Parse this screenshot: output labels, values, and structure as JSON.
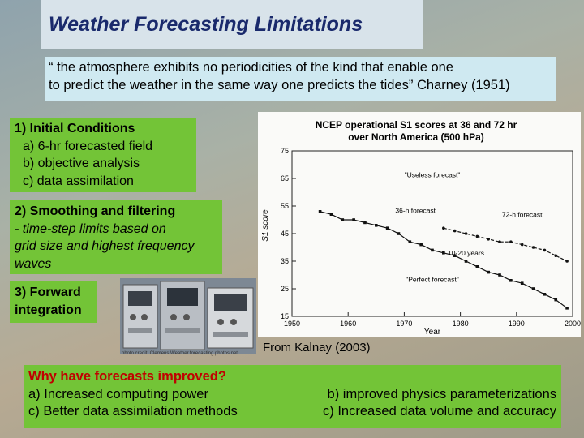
{
  "title": "Weather Forecasting Limitations",
  "quote": {
    "line1": "“ the atmosphere exhibits no periodicities of the kind that enable one",
    "line2": "to predict the weather in the same way one predicts the tides” Charney (1951)"
  },
  "section1": {
    "heading": "1)  Initial Conditions",
    "items": [
      "a) 6-hr forecasted field",
      "b) objective analysis",
      "c) data assimilation"
    ]
  },
  "section2": {
    "heading": "2) Smoothing and filtering",
    "detail_line1": " - time-step limits based on",
    "detail_line2": "grid size and highest frequency",
    "detail_line3": "waves"
  },
  "section3": {
    "line1": "3) Forward",
    "line2": "integration"
  },
  "photo_credit": "photo credit: Clemens Weather.forecasting.photos.net",
  "source": "From Kalnay (2003)",
  "improvements": {
    "question": "Why have forecasts improved?",
    "items": [
      "a)  Increased computing power",
      "b) improved physics parameterizations",
      "c)  Better data assimilation methods",
      "c) Increased data volume and accuracy"
    ]
  },
  "chart_data": {
    "type": "line",
    "title_line1": "NCEP operational S1 scores at 36 and 72 hr",
    "title_line2": "over North America (500 hPa)",
    "xlabel": "Year",
    "ylabel": "S1 score",
    "xlim": [
      1950,
      2000
    ],
    "ylim": [
      15,
      75
    ],
    "x_ticks": [
      "1950",
      "1960",
      "1970",
      "1980",
      "1990",
      "2000"
    ],
    "y_ticks": [
      "15",
      "25",
      "35",
      "45",
      "55",
      "65",
      "75"
    ],
    "annotations": [
      "\"Useless forecast\"",
      "36-h forecast",
      "72-h forecast",
      "10-20 years",
      "\"Perfect forecast\""
    ],
    "series": [
      {
        "name": "36-h forecast",
        "x": [
          1955,
          1957,
          1959,
          1961,
          1963,
          1965,
          1967,
          1969,
          1971,
          1973,
          1975,
          1977,
          1979,
          1981,
          1983,
          1985,
          1987,
          1989,
          1991,
          1993,
          1995,
          1997,
          1999
        ],
        "values": [
          53,
          52,
          50,
          50,
          49,
          48,
          47,
          45,
          42,
          41,
          39,
          38,
          37,
          35,
          33,
          31,
          30,
          28,
          27,
          25,
          23,
          21,
          18
        ]
      },
      {
        "name": "72-h forecast",
        "x": [
          1977,
          1979,
          1981,
          1983,
          1985,
          1987,
          1989,
          1991,
          1993,
          1995,
          1997,
          1999
        ],
        "values": [
          47,
          46,
          45,
          44,
          43,
          42,
          42,
          41,
          40,
          39,
          37,
          35
        ]
      }
    ]
  }
}
